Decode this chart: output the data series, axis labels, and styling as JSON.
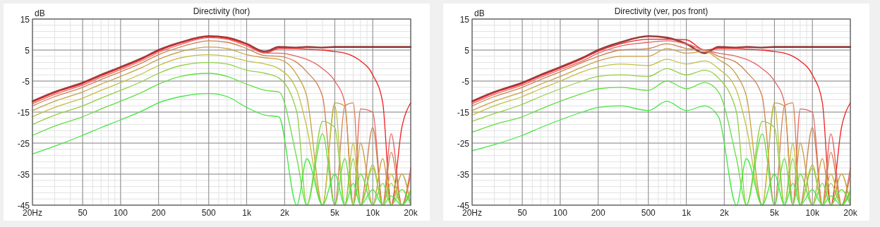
{
  "chart_data": [
    {
      "type": "line",
      "title": "Directivity (hor)",
      "ylabel": "dB",
      "log": "x",
      "grid": true,
      "line_style": "solid",
      "xlim": [
        20,
        20000
      ],
      "xticks": [
        {
          "value": 20,
          "label": "20Hz"
        },
        50,
        100,
        200,
        500,
        {
          "value": 1000,
          "label": "1k"
        },
        {
          "value": 2000,
          "label": "2k"
        },
        {
          "value": 5000,
          "label": "5k"
        },
        {
          "value": 10000,
          "label": "10k"
        },
        {
          "value": 20000,
          "label": "20k"
        }
      ],
      "ylim": [
        -45,
        15
      ],
      "yticks": [
        15,
        5,
        -5,
        -15,
        -25,
        -35,
        -45
      ],
      "x": [
        20,
        30,
        50,
        70,
        100,
        150,
        200,
        300,
        500,
        700,
        1000,
        1400,
        1800,
        2500,
        3000,
        4000,
        5000,
        6000,
        7000,
        8000,
        10000,
        12000,
        14000,
        17000,
        20000
      ],
      "series": [
        {
          "color": "#8b2a2a",
          "values": [
            -11.5,
            -8.5,
            -5.5,
            -3,
            -0.5,
            2.5,
            5,
            7.5,
            9.5,
            9,
            7,
            4.5,
            6,
            5.8,
            6,
            5.8,
            6,
            6,
            6,
            6,
            6,
            6,
            6,
            6,
            6
          ]
        },
        {
          "color": "#ee2020",
          "values": [
            -11.8,
            -8.8,
            -5.8,
            -3.3,
            -0.8,
            2.2,
            4.7,
            7.3,
            9.3,
            8.8,
            6.8,
            4,
            5.5,
            5.5,
            5.3,
            5,
            4.5,
            4,
            3,
            1.5,
            -3,
            -12,
            -45,
            -20,
            -12
          ]
        },
        {
          "color": "#e86060",
          "values": [
            -12.3,
            -9.3,
            -6.3,
            -3.8,
            -1.3,
            1.7,
            4.2,
            6.8,
            9,
            8.5,
            6.3,
            4,
            4,
            3,
            2,
            -1,
            -5,
            -12,
            -45,
            -14,
            -15,
            -45,
            -22,
            -45,
            -33
          ]
        },
        {
          "color": "#d08050",
          "values": [
            -13,
            -10,
            -7,
            -4.5,
            -2,
            1,
            3.5,
            6,
            8,
            7.5,
            5.5,
            3.2,
            3,
            1,
            -2,
            -10,
            -45,
            -13,
            -12,
            -45,
            -20,
            -45,
            -28,
            -45,
            -35
          ]
        },
        {
          "color": "#c8a040",
          "values": [
            -14.5,
            -11.5,
            -8.5,
            -6,
            -3.5,
            -0.5,
            2,
            4.5,
            6,
            5.5,
            3.5,
            2.5,
            2,
            -3,
            -10,
            -45,
            -12,
            -13,
            -45,
            -25,
            -45,
            -30,
            -45,
            -35,
            -45
          ]
        },
        {
          "color": "#c0c040",
          "values": [
            -16.5,
            -13.5,
            -10.5,
            -8,
            -5.5,
            -2.5,
            0,
            2.5,
            3.5,
            3,
            1.5,
            0.5,
            -1,
            -8,
            -20,
            -45,
            -13,
            -45,
            -25,
            -45,
            -32,
            -45,
            -35,
            -45,
            -40
          ]
        },
        {
          "color": "#90d040",
          "values": [
            -19,
            -16,
            -13,
            -10.5,
            -8,
            -5,
            -2.5,
            0,
            1,
            0.5,
            -1.5,
            -2.5,
            -4,
            -15,
            -45,
            -18,
            -20,
            -45,
            -30,
            -45,
            -33,
            -45,
            -38,
            -45,
            -40
          ]
        },
        {
          "color": "#60e040",
          "values": [
            -22.5,
            -19.5,
            -16.5,
            -14,
            -11.5,
            -8.5,
            -6,
            -3.5,
            -2.5,
            -3.5,
            -6,
            -8,
            -8.5,
            -30,
            -45,
            -22,
            -45,
            -30,
            -45,
            -35,
            -45,
            -38,
            -45,
            -40,
            -45
          ]
        },
        {
          "color": "#40e840",
          "values": [
            -28.5,
            -26,
            -22.5,
            -20,
            -17.5,
            -14.5,
            -12,
            -10,
            -9,
            -10,
            -13.5,
            -16,
            -16.5,
            -45,
            -30,
            -45,
            -35,
            -45,
            -38,
            -45,
            -40,
            -45,
            -42,
            -45,
            -41
          ]
        }
      ]
    },
    {
      "type": "line",
      "title": "Directivity (ver, pos front)",
      "ylabel": "dB",
      "log": "x",
      "grid": true,
      "line_style": "solid",
      "xlim": [
        20,
        20000
      ],
      "xticks": [
        {
          "value": 20,
          "label": "20Hz"
        },
        50,
        100,
        200,
        500,
        {
          "value": 1000,
          "label": "1k"
        },
        {
          "value": 2000,
          "label": "2k"
        },
        {
          "value": 5000,
          "label": "5k"
        },
        {
          "value": 10000,
          "label": "10k"
        },
        {
          "value": 20000,
          "label": "20k"
        }
      ],
      "ylim": [
        -45,
        15
      ],
      "yticks": [
        15,
        5,
        -5,
        -15,
        -25,
        -35,
        -45
      ],
      "x": [
        20,
        30,
        50,
        70,
        100,
        150,
        200,
        300,
        500,
        700,
        1000,
        1400,
        1800,
        2500,
        3000,
        4000,
        5000,
        6000,
        7000,
        8000,
        10000,
        12000,
        14000,
        17000,
        20000
      ],
      "series": [
        {
          "color": "#8b2a2a",
          "values": [
            -11.5,
            -8.5,
            -5.5,
            -3,
            -0.5,
            2.5,
            5,
            7.5,
            9.5,
            9,
            7,
            4,
            6,
            5.8,
            6,
            5.8,
            6,
            6,
            6,
            6,
            6,
            6,
            6,
            6,
            6
          ]
        },
        {
          "color": "#ee2020",
          "values": [
            -11.8,
            -8.8,
            -5.8,
            -3.3,
            -0.8,
            2.2,
            4.6,
            7,
            8.5,
            8.5,
            8.3,
            5,
            5.5,
            5.5,
            5.3,
            5,
            4.5,
            4,
            3,
            1.5,
            -3,
            -12,
            -45,
            -20,
            -12
          ]
        },
        {
          "color": "#e86060",
          "values": [
            -12.3,
            -9.3,
            -6.3,
            -3.8,
            -1.3,
            1.5,
            4,
            6.3,
            7.5,
            8,
            7,
            5,
            4,
            3,
            2,
            -1,
            -5,
            -12,
            -45,
            -14,
            -15,
            -45,
            -22,
            -45,
            -33
          ]
        },
        {
          "color": "#d08050",
          "values": [
            -13,
            -10,
            -7,
            -4.5,
            -2,
            1,
            3,
            5,
            5.5,
            7,
            5.5,
            5,
            3,
            1,
            -2,
            -10,
            -45,
            -13,
            -12,
            -45,
            -20,
            -45,
            -28,
            -45,
            -35
          ]
        },
        {
          "color": "#c8a040",
          "values": [
            -14.5,
            -11.5,
            -8.5,
            -6,
            -3.5,
            -0.5,
            1.5,
            3,
            3,
            5.5,
            4,
            4.5,
            2,
            -3,
            -10,
            -45,
            -12,
            -13,
            -45,
            -25,
            -45,
            -30,
            -45,
            -35,
            -45
          ]
        },
        {
          "color": "#c0c040",
          "values": [
            -16,
            -13,
            -10,
            -7.5,
            -5,
            -2,
            -0.5,
            0.5,
            0,
            2,
            0.5,
            1.5,
            -1,
            -8,
            -20,
            -45,
            -13,
            -45,
            -25,
            -45,
            -32,
            -45,
            -35,
            -45,
            -40
          ]
        },
        {
          "color": "#90d040",
          "values": [
            -18,
            -15.5,
            -12.5,
            -10,
            -7.5,
            -5,
            -3.5,
            -3,
            -3.5,
            -1,
            -3,
            -1.5,
            -4,
            -15,
            -45,
            -18,
            -20,
            -45,
            -30,
            -45,
            -33,
            -45,
            -38,
            -45,
            -40
          ]
        },
        {
          "color": "#60e040",
          "values": [
            -21.5,
            -19,
            -16.5,
            -14,
            -11.5,
            -9,
            -7.5,
            -7,
            -8,
            -5,
            -7.5,
            -5.5,
            -8.5,
            -30,
            -45,
            -22,
            -45,
            -30,
            -45,
            -35,
            -45,
            -38,
            -45,
            -40,
            -45
          ]
        },
        {
          "color": "#40e840",
          "values": [
            -27.5,
            -25.5,
            -22.5,
            -20,
            -17.5,
            -15,
            -13.5,
            -13,
            -14.5,
            -11.5,
            -14.5,
            -13,
            -16.5,
            -45,
            -30,
            -45,
            -35,
            -45,
            -38,
            -45,
            -40,
            -45,
            -42,
            -45,
            -41
          ]
        }
      ]
    }
  ]
}
